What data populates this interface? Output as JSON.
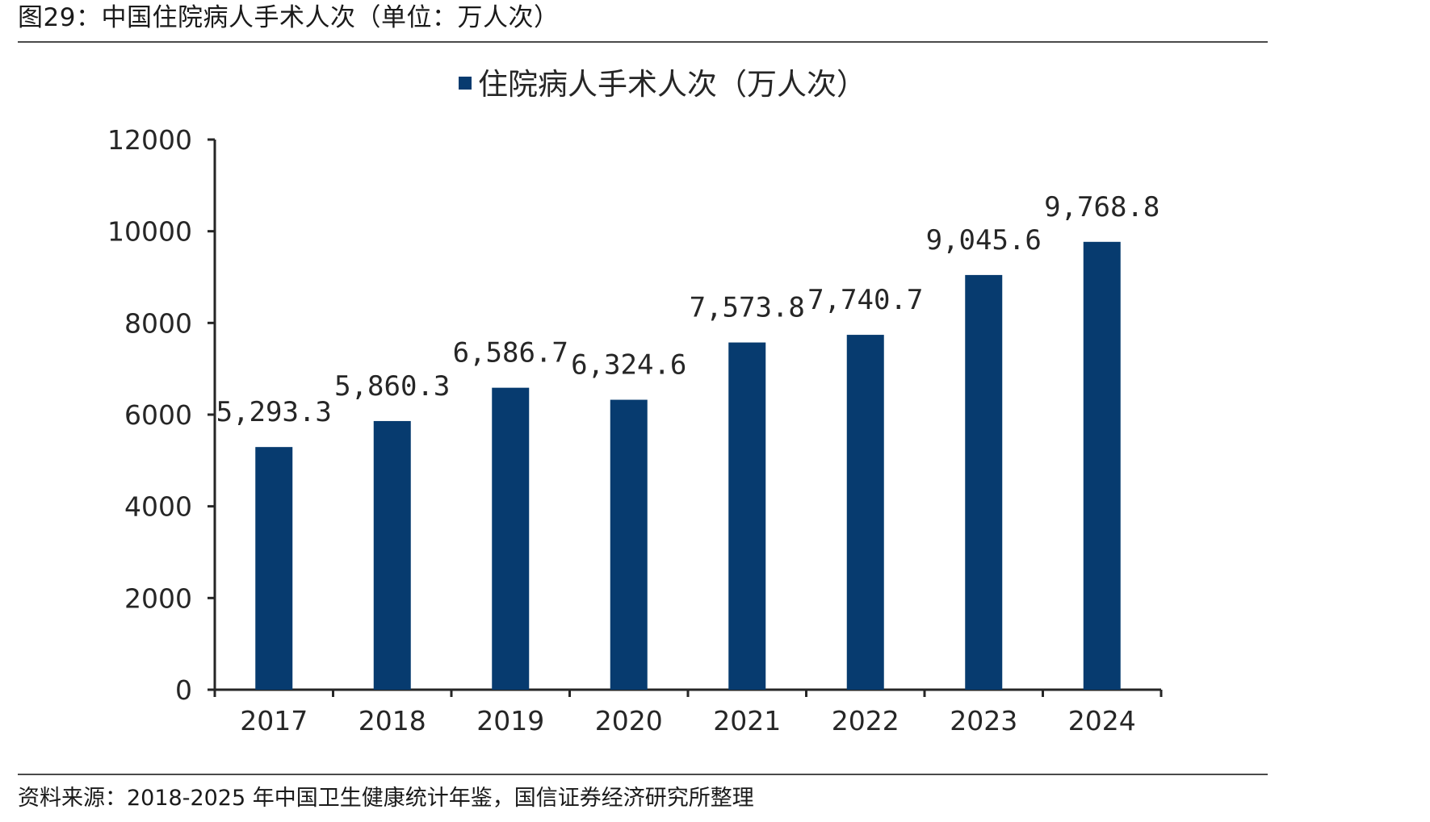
{
  "header": {
    "figure_title": "图29：中国住院病人手术人次（单位：万人次）"
  },
  "footer": {
    "source": "资料来源：2018-2025 年中国卫生健康统计年鉴，国信证券经济研究所整理"
  },
  "colors": {
    "bar": "#073B6F",
    "axis": "#262626",
    "rule": "#4a4a4a"
  },
  "chart_data": {
    "type": "bar",
    "categories": [
      "2017",
      "2018",
      "2019",
      "2020",
      "2021",
      "2022",
      "2023",
      "2024"
    ],
    "series": [
      {
        "name": "住院病人手术人次（万人次）",
        "values": [
          5293.3,
          5860.3,
          6586.7,
          6324.6,
          7573.8,
          7740.7,
          9045.6,
          9768.8
        ],
        "labels": [
          "5,293.3",
          "5,860.3",
          "6,586.7",
          "6,324.6",
          "7,573.8",
          "7,740.7",
          "9,045.6",
          "9,768.8"
        ]
      }
    ],
    "ylim": [
      0,
      12000
    ],
    "yticks": [
      0,
      2000,
      4000,
      6000,
      8000,
      10000,
      12000
    ],
    "xlabel": "",
    "ylabel": "",
    "grid": false,
    "legend": "top-center"
  }
}
